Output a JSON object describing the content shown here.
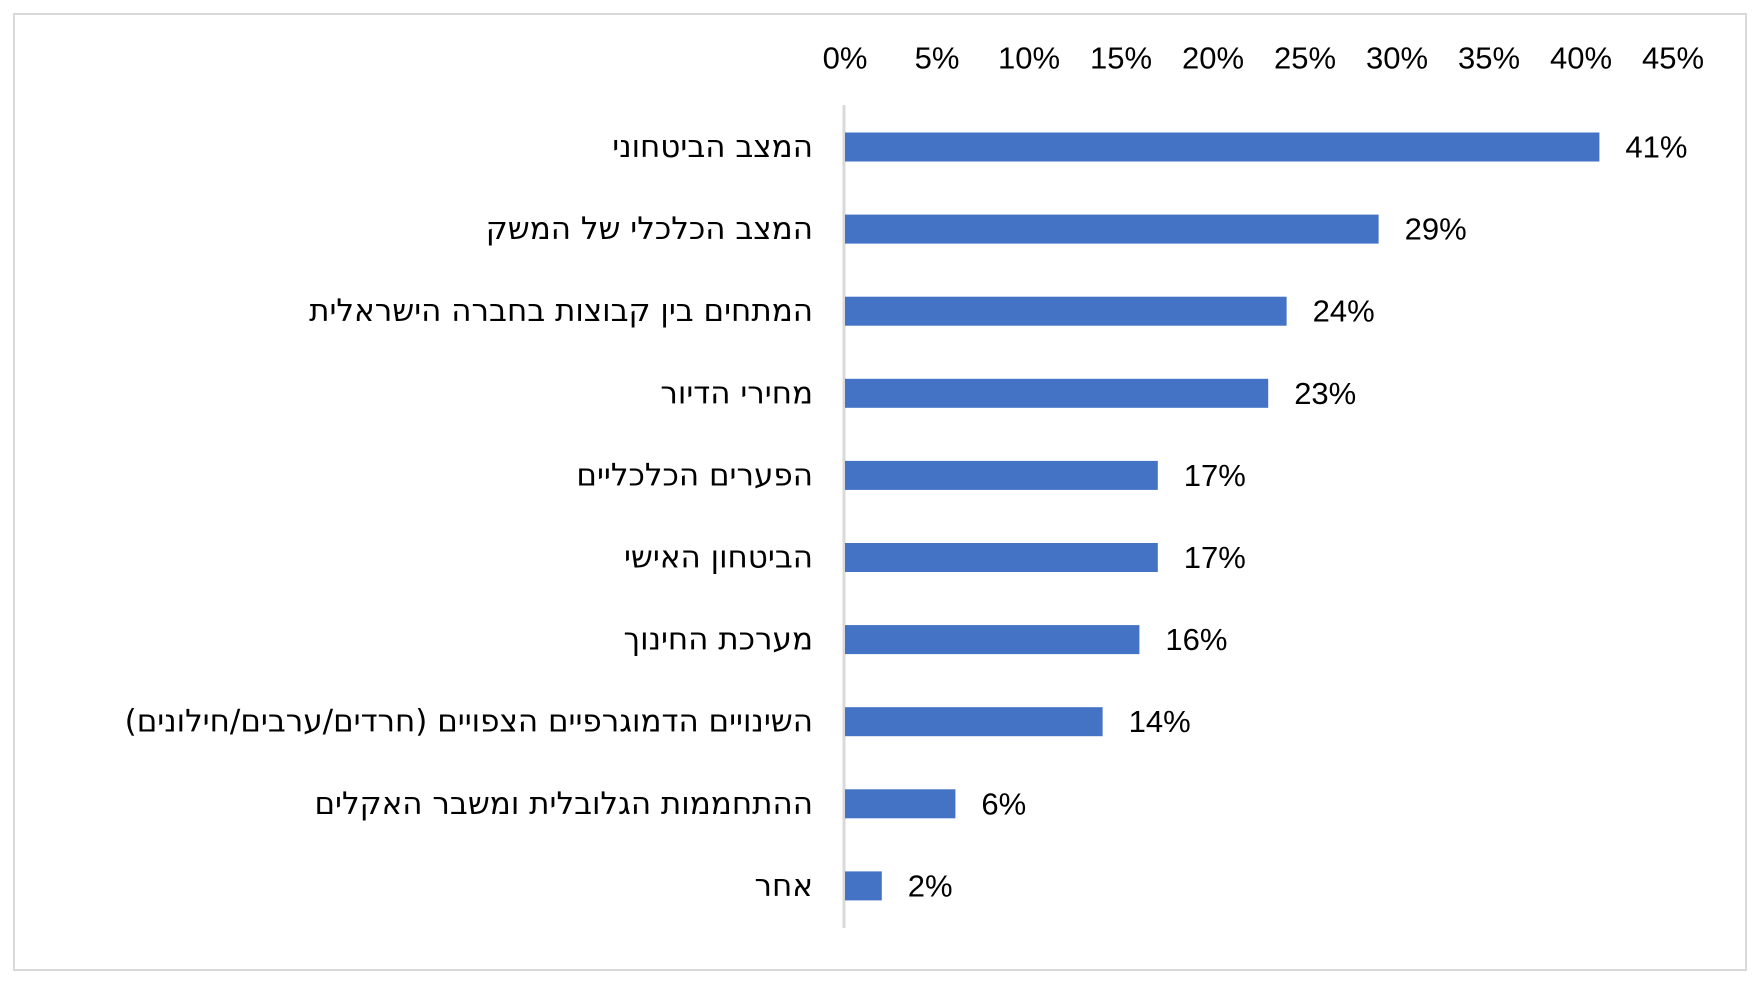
{
  "chart_data": {
    "type": "bar",
    "orientation": "horizontal",
    "title": "",
    "xlabel": "",
    "ylabel": "",
    "categories": [
      "המצב הביטחוני",
      "המצב הכלכלי של המשק",
      "המתחים בין קבוצות בחברה הישראלית",
      "מחירי הדיור",
      "הפערים הכלכליים",
      "הביטחון האישי",
      "מערכת החינוך",
      "השינויים הדמוגרפיים הצפויים (חרדים/ערבים/חילונים)",
      "ההתחממות הגלובלית ומשבר האקלים",
      "אחר"
    ],
    "values": [
      41,
      29,
      24,
      23,
      17,
      17,
      16,
      14,
      6,
      2
    ],
    "value_labels": [
      "41%",
      "29%",
      "24%",
      "23%",
      "17%",
      "17%",
      "16%",
      "14%",
      "6%",
      "2%"
    ],
    "xlim": [
      0,
      45
    ],
    "ticks": [
      0,
      5,
      10,
      15,
      20,
      25,
      30,
      35,
      40,
      45
    ],
    "tick_labels": [
      "0%",
      "5%",
      "10%",
      "15%",
      "20%",
      "25%",
      "30%",
      "35%",
      "40%",
      "45%"
    ],
    "axis_position": "top",
    "grid": false,
    "legend": "none",
    "bar_color": "#4472C4",
    "axis_line_color": "#d9d9d9"
  }
}
